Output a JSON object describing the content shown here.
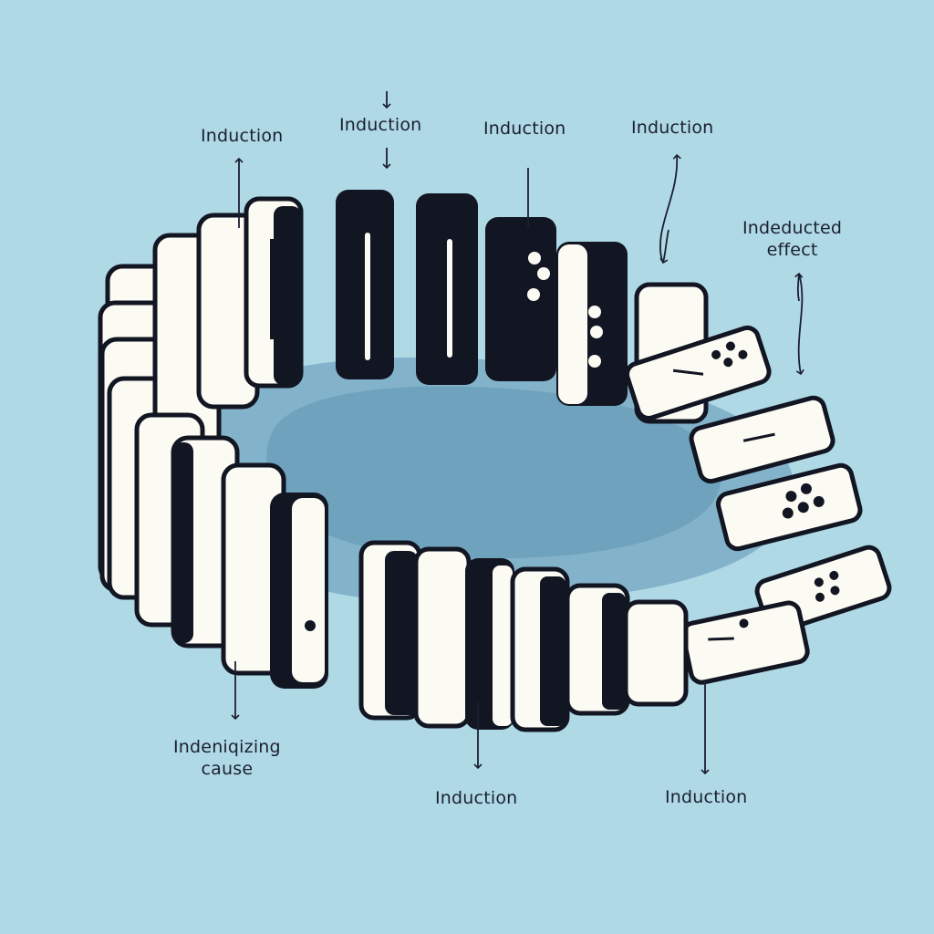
{
  "colors": {
    "background": "#b0d9e6",
    "floor": "#7eaec6",
    "shadow": "#5f92ad",
    "domino_face": "#fbfaf3",
    "domino_dark": "#121522",
    "ink": "#1b1f33"
  },
  "labels": {
    "induction_1": "Induction",
    "induction_2": "Induction",
    "induction_3": "Induction",
    "induction_4": "Induction",
    "induction_5": "Induction",
    "induction_6": "Induction",
    "effect_line1": "Indeducted",
    "effect_line2": "effect",
    "cause_line1": "Indeniqizing",
    "cause_line2": "cause"
  }
}
